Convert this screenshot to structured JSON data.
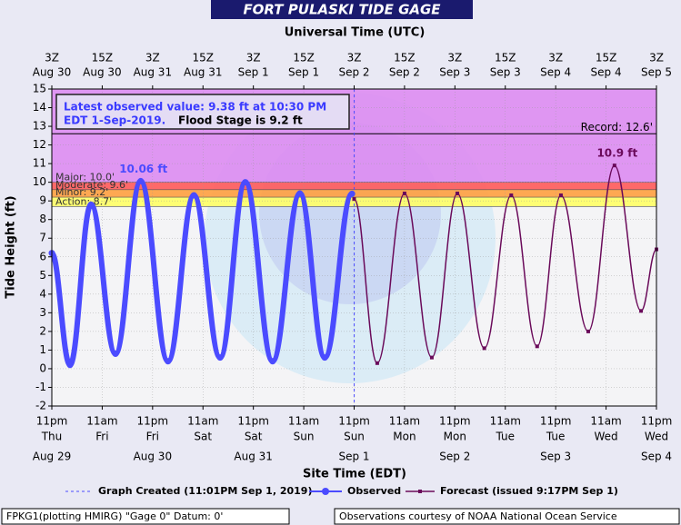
{
  "chart_data": {
    "type": "line",
    "title": "FORT PULASKI TIDE GAGE",
    "x2_axis_label": "Universal Time (UTC)",
    "x_axis_label": "Site Time (EDT)",
    "y_axis_label": "Tide Height (ft)",
    "xlim": [
      "Aug 29 23:00",
      "Sep 4 23:00"
    ],
    "ylim": [
      -2,
      15
    ],
    "yticks": [
      -2,
      -1,
      0,
      1,
      2,
      3,
      4,
      5,
      6,
      7,
      8,
      9,
      10,
      11,
      12,
      13,
      14,
      15
    ],
    "grid": true,
    "xticks": [
      {
        "value": "Aug 29 23:00",
        "label": "11pm",
        "day": "Thu",
        "date": "Aug 29"
      },
      {
        "value": "Aug 30 11:00",
        "label": "11am",
        "day": "Fri"
      },
      {
        "value": "Aug 30 23:00",
        "label": "11pm",
        "day": "Fri",
        "date": "Aug 30"
      },
      {
        "value": "Aug 31 11:00",
        "label": "11am",
        "day": "Sat"
      },
      {
        "value": "Aug 31 23:00",
        "label": "11pm",
        "day": "Sat",
        "date": "Aug 31"
      },
      {
        "value": "Sep 1 11:00",
        "label": "11am",
        "day": "Sun"
      },
      {
        "value": "Sep 1 23:00",
        "label": "11pm",
        "day": "Sun",
        "date": "Sep 1"
      },
      {
        "value": "Sep 2 11:00",
        "label": "11am",
        "day": "Mon"
      },
      {
        "value": "Sep 2 23:00",
        "label": "11pm",
        "day": "Mon",
        "date": "Sep 2"
      },
      {
        "value": "Sep 3 11:00",
        "label": "11am",
        "day": "Tue"
      },
      {
        "value": "Sep 3 23:00",
        "label": "11pm",
        "day": "Tue",
        "date": "Sep 3"
      },
      {
        "value": "Sep 4 11:00",
        "label": "11am",
        "day": "Wed"
      },
      {
        "value": "Sep 4 23:00",
        "label": "11pm",
        "day": "Wed",
        "date": "Sep 4"
      }
    ],
    "x2ticks": [
      {
        "value": "Aug 29 23:00",
        "label": "3Z",
        "date": "Aug 30"
      },
      {
        "value": "Aug 30 11:00",
        "label": "15Z",
        "date": "Aug 30"
      },
      {
        "value": "Aug 30 23:00",
        "label": "3Z",
        "date": "Aug 31"
      },
      {
        "value": "Aug 31 11:00",
        "label": "15Z",
        "date": "Aug 31"
      },
      {
        "value": "Aug 31 23:00",
        "label": "3Z",
        "date": "Sep 1"
      },
      {
        "value": "Sep 1 11:00",
        "label": "15Z",
        "date": "Sep 1"
      },
      {
        "value": "Sep 1 23:00",
        "label": "3Z",
        "date": "Sep 2"
      },
      {
        "value": "Sep 2 11:00",
        "label": "15Z",
        "date": "Sep 2"
      },
      {
        "value": "Sep 2 23:00",
        "label": "3Z",
        "date": "Sep 3"
      },
      {
        "value": "Sep 3 11:00",
        "label": "15Z",
        "date": "Sep 3"
      },
      {
        "value": "Sep 3 23:00",
        "label": "3Z",
        "date": "Sep 4"
      },
      {
        "value": "Sep 4 11:00",
        "label": "15Z",
        "date": "Sep 4"
      },
      {
        "value": "Sep 4 23:00",
        "label": "3Z",
        "date": "Sep 5"
      }
    ],
    "flood_levels": [
      {
        "label": "Action: 8.7'",
        "value": 8.7,
        "color": "#ffff66"
      },
      {
        "label": "Minor: 9.2'",
        "value": 9.2,
        "color": "#ffa040"
      },
      {
        "label": "Moderate: 9.6'",
        "value": 9.6,
        "color": "#ff5a5a"
      },
      {
        "label": "Major: 10.0'",
        "value": 10.0,
        "color": "#dd8cf2"
      }
    ],
    "record": {
      "label": "Record: 12.6'",
      "value": 12.6,
      "color": "#000000"
    },
    "series": [
      {
        "name": "Observed",
        "color": "#4b4bff",
        "x": [
          "Aug 29 23:00",
          "Aug 30 03:20",
          "Aug 30 08:20",
          "Aug 30 14:10",
          "Aug 30 20:10",
          "Aug 31 02:40",
          "Aug 31 08:50",
          "Aug 31 15:05",
          "Aug 31 21:05",
          "Sep 1 03:35",
          "Sep 1 10:05",
          "Sep 1 16:00",
          "Sep 1 22:30"
        ],
        "values": [
          6.2,
          0.2,
          8.8,
          0.8,
          10.06,
          0.4,
          9.3,
          0.6,
          10.0,
          0.4,
          9.4,
          0.6,
          9.38
        ]
      },
      {
        "name": "Forecast (issued 9:17PM Sep 1)",
        "color": "#6a0a5a",
        "x": [
          "Sep 1 23:00",
          "Sep 2 04:30",
          "Sep 2 11:00",
          "Sep 2 17:30",
          "Sep 2 23:35",
          "Sep 3 06:00",
          "Sep 3 12:25",
          "Sep 3 18:35",
          "Sep 4 00:15",
          "Sep 4 06:45",
          "Sep 4 13:00",
          "Sep 4 19:20",
          "Sep 4 23:00"
        ],
        "values": [
          9.1,
          0.3,
          9.4,
          0.6,
          9.4,
          1.1,
          9.3,
          1.2,
          9.3,
          2.0,
          10.9,
          3.1,
          6.4
        ]
      }
    ],
    "annotations": [
      {
        "text": "10.06 ft",
        "x": "Aug 30 20:10",
        "y": 10.06,
        "color": "#4b4bff"
      },
      {
        "text": "10.9 ft",
        "x": "Sep 4 13:00",
        "y": 10.9,
        "color": "#6a0a5a"
      }
    ],
    "created": {
      "label": "Graph Created (11:01PM Sep 1, 2019)",
      "x": "Sep 1 23:01",
      "color": "#4b4bff"
    },
    "info": {
      "line1": "Latest observed value: 9.38 ft at 10:30 PM",
      "line2": "EDT 1-Sep-2019.",
      "line2b": "Flood Stage is 9.2 ft"
    },
    "footer_left": "FPKG1(plotting HMIRG) \"Gage 0\" Datum: 0'",
    "footer_right": "Observations courtesy of NOAA National Ocean Service"
  }
}
